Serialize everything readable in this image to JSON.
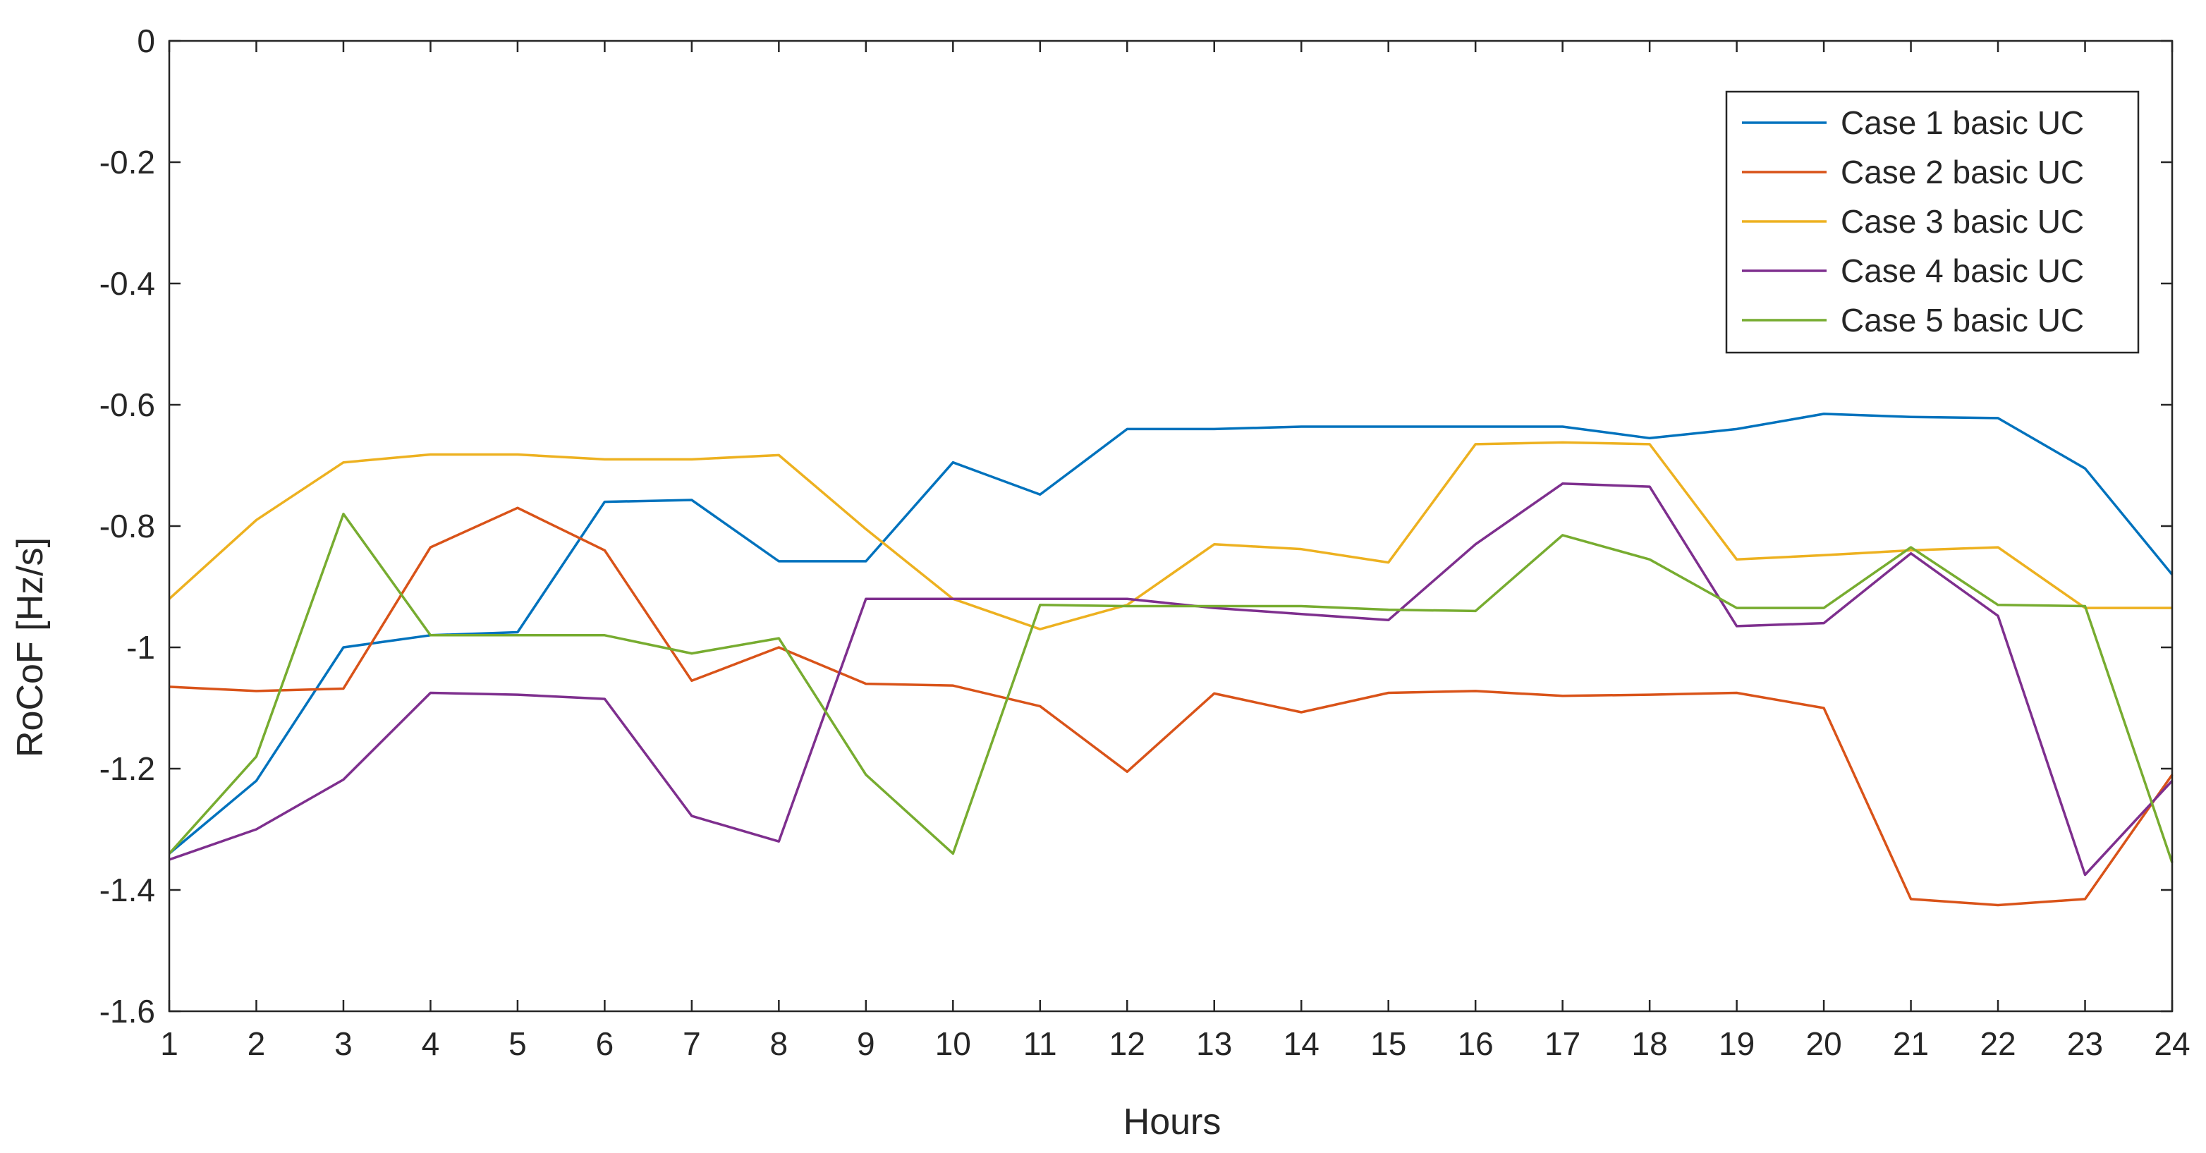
{
  "chart_data": {
    "type": "line",
    "title": "",
    "xlabel": "Hours",
    "ylabel": "RoCoF [Hz/s]",
    "x": [
      1,
      2,
      3,
      4,
      5,
      6,
      7,
      8,
      9,
      10,
      11,
      12,
      13,
      14,
      15,
      16,
      17,
      18,
      19,
      20,
      21,
      22,
      23,
      24
    ],
    "xlim": [
      1,
      24
    ],
    "ylim": [
      -1.6,
      0
    ],
    "x_ticks": [
      "1",
      "2",
      "3",
      "4",
      "5",
      "6",
      "7",
      "8",
      "9",
      "10",
      "11",
      "12",
      "13",
      "14",
      "15",
      "16",
      "17",
      "18",
      "19",
      "20",
      "21",
      "22",
      "23",
      "24"
    ],
    "y_ticks": [
      "0",
      "-0.2",
      "-0.4",
      "-0.6",
      "-0.8",
      "-1",
      "-1.2",
      "-1.4",
      "-1.6"
    ],
    "grid": false,
    "legend_position": "top-right",
    "series": [
      {
        "name": "Case 1 basic UC",
        "color": "#0072BD",
        "values": [
          -1.34,
          -1.22,
          -1.0,
          -0.98,
          -0.975,
          -0.76,
          -0.757,
          -0.858,
          -0.858,
          -0.695,
          -0.748,
          -0.64,
          -0.64,
          -0.636,
          -0.636,
          -0.636,
          -0.636,
          -0.655,
          -0.64,
          -0.615,
          -0.62,
          -0.622,
          -0.705,
          -0.88
        ]
      },
      {
        "name": "Case 2 basic UC",
        "color": "#D95319",
        "values": [
          -1.065,
          -1.072,
          -1.068,
          -0.835,
          -0.77,
          -0.84,
          -1.055,
          -1.0,
          -1.06,
          -1.063,
          -1.097,
          -1.205,
          -1.076,
          -1.107,
          -1.075,
          -1.072,
          -1.08,
          -1.078,
          -1.075,
          -1.1,
          -1.415,
          -1.425,
          -1.415,
          -1.21
        ]
      },
      {
        "name": "Case 3 basic UC",
        "color": "#EDB120",
        "values": [
          -0.92,
          -0.79,
          -0.695,
          -0.682,
          -0.682,
          -0.69,
          -0.69,
          -0.683,
          -0.805,
          -0.92,
          -0.97,
          -0.93,
          -0.83,
          -0.838,
          -0.86,
          -0.665,
          -0.662,
          -0.665,
          -0.855,
          -0.848,
          -0.84,
          -0.835,
          -0.935,
          -0.935
        ]
      },
      {
        "name": "Case 4 basic UC",
        "color": "#7E2F8E",
        "values": [
          -1.35,
          -1.3,
          -1.218,
          -1.075,
          -1.078,
          -1.085,
          -1.278,
          -1.32,
          -0.92,
          -0.92,
          -0.92,
          -0.92,
          -0.935,
          -0.945,
          -0.955,
          -0.83,
          -0.73,
          -0.735,
          -0.965,
          -0.96,
          -0.845,
          -0.948,
          -1.375,
          -1.22
        ]
      },
      {
        "name": "Case 5 basic UC",
        "color": "#77AC30",
        "values": [
          -1.34,
          -1.18,
          -0.78,
          -0.98,
          -0.98,
          -0.98,
          -1.01,
          -0.985,
          -1.21,
          -1.34,
          -0.93,
          -0.932,
          -0.932,
          -0.932,
          -0.938,
          -0.94,
          -0.815,
          -0.855,
          -0.935,
          -0.935,
          -0.835,
          -0.93,
          -0.932,
          -1.355
        ]
      }
    ]
  }
}
